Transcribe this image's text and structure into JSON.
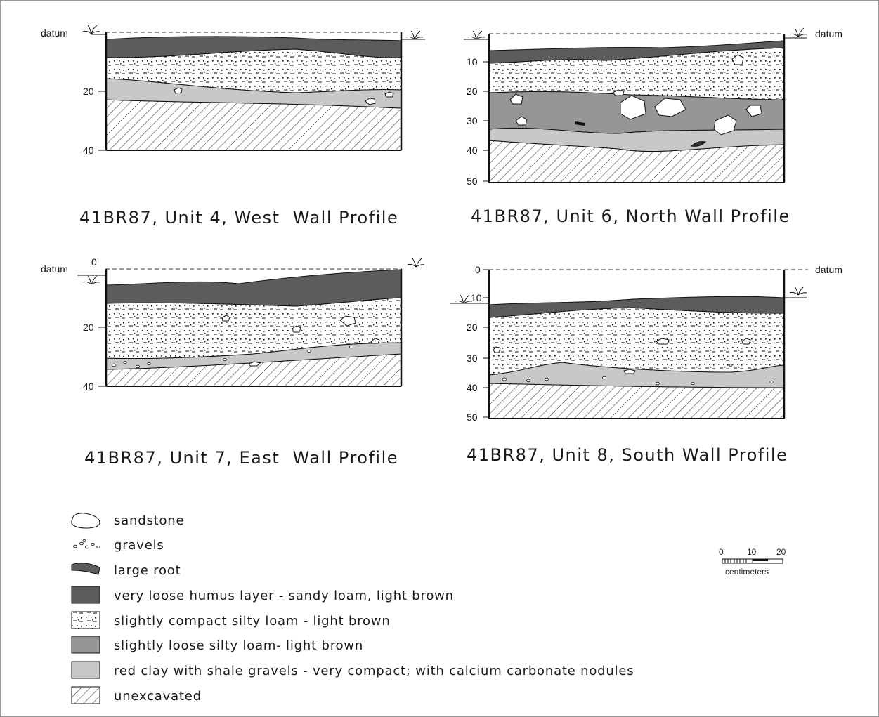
{
  "datum_label": "datum",
  "profiles": [
    {
      "title": "41BR87, Unit 4, West  Wall Profile",
      "depth_labels": [
        "20",
        "40"
      ]
    },
    {
      "title": "41BR87, Unit 6, North Wall Profile",
      "depth_labels": [
        "10",
        "20",
        "30",
        "40",
        "50"
      ]
    },
    {
      "title": "41BR87, Unit 7, East  Wall Profile",
      "depth_labels": [
        "0",
        "20",
        "40"
      ]
    },
    {
      "title": "41BR87, Unit 8, South Wall Profile",
      "depth_labels": [
        "0",
        "10",
        "20",
        "30",
        "40",
        "50"
      ]
    }
  ],
  "legend": [
    {
      "symbol": "sandstone",
      "label": "sandstone"
    },
    {
      "symbol": "gravels",
      "label": "gravels"
    },
    {
      "symbol": "large-root",
      "label": "large root"
    },
    {
      "symbol": "humus",
      "label": "very loose humus layer - sandy loam, light brown"
    },
    {
      "symbol": "silty-compact",
      "label": "slightly compact silty loam - light brown"
    },
    {
      "symbol": "silty-loose",
      "label": "slightly loose silty loam- light brown"
    },
    {
      "symbol": "red-clay",
      "label": "red clay with shale gravels - very compact; with calcium carbonate nodules"
    },
    {
      "symbol": "unexcavated",
      "label": "unexcavated"
    }
  ],
  "scale": {
    "ticks": [
      "0",
      "10",
      "20"
    ],
    "unit": "centimeters"
  },
  "colors": {
    "humus": "#5c5c5c",
    "silty_loose": "#969696",
    "red_clay": "#c8c8c8",
    "unexcavated_hatch": "#333333"
  }
}
